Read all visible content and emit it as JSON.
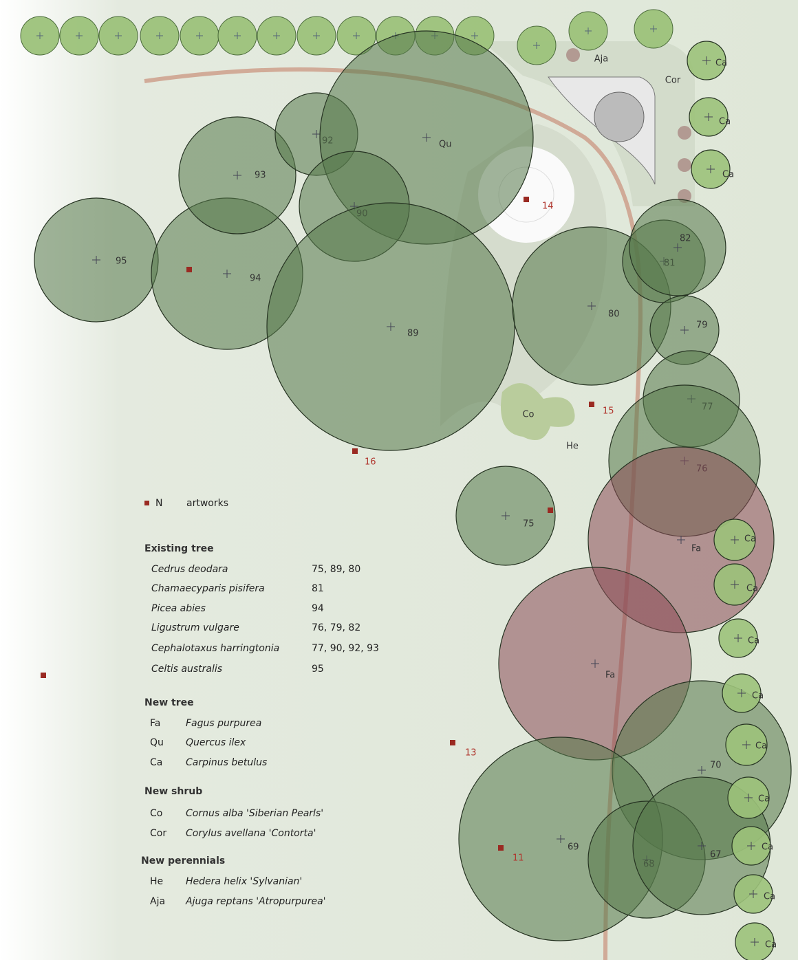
{
  "trees": [
    {
      "label": "95"
    },
    {
      "label": "94"
    },
    {
      "label": "93"
    },
    {
      "label": "92"
    },
    {
      "label": "Qu"
    },
    {
      "label": "90"
    },
    {
      "label": "89"
    },
    {
      "label": "80"
    },
    {
      "label": "81"
    },
    {
      "label": "82"
    },
    {
      "label": "79"
    },
    {
      "label": "77"
    },
    {
      "label": "76"
    },
    {
      "label": "Fa"
    },
    {
      "label": "Fa"
    },
    {
      "label": "75"
    },
    {
      "label": "70"
    },
    {
      "label": "69"
    },
    {
      "label": "68"
    },
    {
      "label": "67"
    },
    {
      "label": "Ca"
    },
    {
      "label": "Ca"
    },
    {
      "label": "Ca"
    },
    {
      "label": "Ca"
    },
    {
      "label": "Ca"
    },
    {
      "label": "Ca"
    },
    {
      "label": "Ca"
    },
    {
      "label": "Ca"
    },
    {
      "label": "Ca"
    },
    {
      "label": "Ca"
    },
    {
      "label": "Ca"
    },
    {
      "label": "Ca"
    }
  ],
  "areas": [
    {
      "label": "Aja"
    },
    {
      "label": "Cor"
    },
    {
      "label": "Co"
    },
    {
      "label": "He"
    }
  ],
  "artworks": [
    {
      "label": "14"
    },
    {
      "label": "15"
    },
    {
      "label": "16"
    },
    {
      "label": "13"
    },
    {
      "label": "11"
    }
  ],
  "legend": {
    "artwork_symbol": "N",
    "artwork_text": "artworks",
    "sections": [
      {
        "title": "Existing tree",
        "rows": [
          [
            "Cedrus deodara",
            "75, 89, 80"
          ],
          [
            "Chamaecyparis pisifera",
            "81"
          ],
          [
            "Picea abies",
            "94"
          ],
          [
            "Ligustrum vulgare",
            "76, 79, 82"
          ],
          [
            "Cephalotaxus harringtonia",
            "77, 90, 92, 93"
          ],
          [
            "Celtis australis",
            "95"
          ]
        ]
      },
      {
        "title": "New tree",
        "rows": [
          [
            "Fa",
            "Fagus purpurea"
          ],
          [
            "Qu",
            "Quercus ilex"
          ],
          [
            "Ca",
            "Carpinus betulus"
          ]
        ]
      },
      {
        "title": "New shrub",
        "rows": [
          [
            "Co",
            "Cornus alba 'Siberian Pearls'"
          ],
          [
            "Cor",
            "Corylus avellana 'Contorta'"
          ]
        ]
      },
      {
        "title": "New perennials",
        "rows": [
          [
            "He",
            "Hedera helix 'Sylvanian'"
          ],
          [
            "Aja",
            "Ajuga reptans 'Atropurpurea'"
          ]
        ]
      }
    ]
  }
}
